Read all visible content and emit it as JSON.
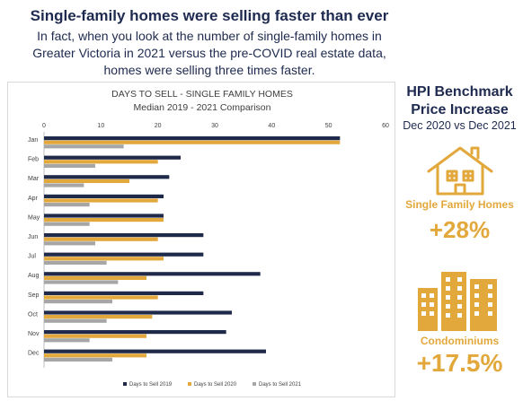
{
  "headline": "Single-family homes were selling faster than ever",
  "intro_lines": [
    "In fact, when you look at the number of single-family homes in",
    "Greater Victoria in 2021 versus the pre-COVID real estate data,",
    "homes were selling three times faster."
  ],
  "chart_data": {
    "type": "bar",
    "orientation": "horizontal",
    "title": "DAYS TO SELL - SINGLE FAMILY HOMES",
    "subtitle": "Median 2019 - 2021 Comparison",
    "categories": [
      "Jan",
      "Feb",
      "Mar",
      "Apr",
      "May",
      "Jun",
      "Jul",
      "Aug",
      "Sep",
      "Oct",
      "Nov",
      "Dec"
    ],
    "series": [
      {
        "name": "Days to Sell 2019",
        "color": "#1f2a4a",
        "values": [
          52,
          24,
          22,
          21,
          21,
          28,
          28,
          38,
          28,
          33,
          32,
          39
        ]
      },
      {
        "name": "Days to Sell 2020",
        "color": "#e2a83b",
        "values": [
          52,
          20,
          15,
          20,
          21,
          20,
          21,
          18,
          20,
          19,
          18,
          18
        ]
      },
      {
        "name": "Days to Sell 2021",
        "color": "#a6a6a6",
        "values": [
          14,
          9,
          7,
          8,
          8,
          9,
          11,
          13,
          12,
          11,
          8,
          12
        ]
      }
    ],
    "xlim": [
      0,
      60
    ],
    "xticks": [
      "0",
      "10",
      "20",
      "30",
      "40",
      "50",
      "60"
    ],
    "xaxis_position": "top",
    "grid": false,
    "legend": "bottom"
  },
  "side_panel": {
    "title_line1": "HPI Benchmark",
    "title_line2": "Price Increase",
    "subtitle": "Dec 2020 vs  Dec 2021",
    "stats": [
      {
        "label": "Single Family Homes",
        "value": "+28%",
        "icon": "house-icon"
      },
      {
        "label": "Condominiums",
        "value": "+17.5%",
        "icon": "buildings-icon"
      }
    ],
    "accent_color": "#e2a83b"
  }
}
